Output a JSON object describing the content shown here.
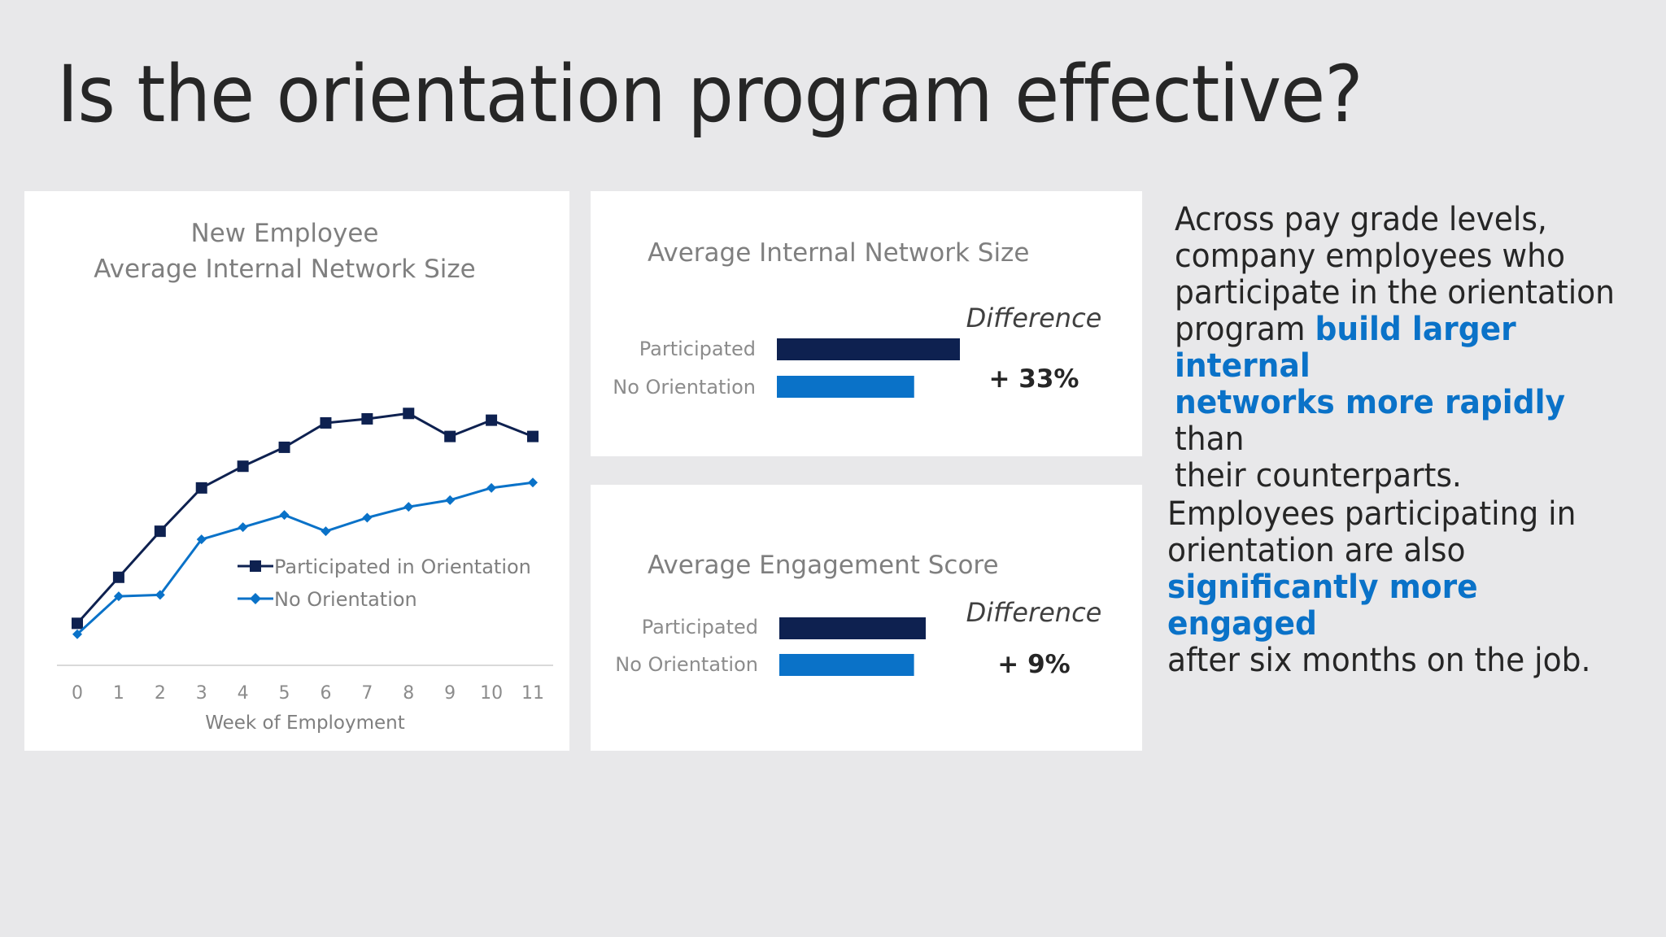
{
  "title": "Is the orientation program effective?",
  "colors": {
    "dark_navy": "#0e2150",
    "blue": "#0a72c8",
    "background": "#e8e8ea",
    "card": "#ffffff"
  },
  "chart_data": [
    {
      "type": "line",
      "title_lines": [
        "New Employee",
        "Average Internal Network Size"
      ],
      "xlabel": "Week of Employment",
      "x": [
        0,
        1,
        2,
        3,
        4,
        5,
        6,
        7,
        8,
        9,
        10,
        11
      ],
      "ylim": [
        0,
        100
      ],
      "grid": false,
      "legend_position": "center-right",
      "series": [
        {
          "name": "Participated in Orientation",
          "color": "#0e2150",
          "marker": "square",
          "values": [
            11,
            28,
            45,
            61,
            69,
            76,
            85,
            86.5,
            88.5,
            80,
            86,
            80
          ]
        },
        {
          "name": "No Orientation",
          "color": "#0a72c8",
          "marker": "diamond",
          "values": [
            7,
            21,
            21.5,
            42,
            46.5,
            51,
            45,
            50,
            54,
            56.5,
            61,
            63
          ]
        }
      ]
    },
    {
      "type": "bar",
      "orientation": "horizontal",
      "title": "Average Internal Network Size",
      "categories": [
        "Participated",
        "No Orientation"
      ],
      "values": [
        100,
        75
      ],
      "colors": [
        "#0e2150",
        "#0a72c8"
      ],
      "difference_label": "Difference",
      "difference_value": "+ 33%"
    },
    {
      "type": "bar",
      "orientation": "horizontal",
      "title": "Average Engagement Score",
      "categories": [
        "Participated",
        "No Orientation"
      ],
      "values": [
        100,
        92
      ],
      "colors": [
        "#0e2150",
        "#0a72c8"
      ],
      "difference_label": "Difference",
      "difference_value": "+ 9%"
    }
  ],
  "callouts": [
    {
      "before": "Across pay grade levels,\ncompany employees who\nparticipate in the orientation\nprogram ",
      "highlight": "build larger internal\nnetworks more rapidly",
      "after": " than\ntheir counterparts."
    },
    {
      "before": "Employees participating in\norientation are also\n",
      "highlight": "significantly more engaged",
      "after": "\nafter six months on the job."
    }
  ]
}
